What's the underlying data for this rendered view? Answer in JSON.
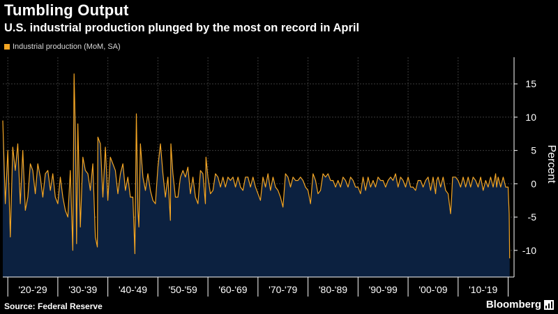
{
  "header": {
    "title": "Tumbling Output",
    "subtitle": "U.S. industrial production plunged by the most on record in April"
  },
  "legend": {
    "label": "Industrial production (MoM, SA)"
  },
  "footer": {
    "source": "Source: Federal Reserve",
    "brand": "Bloomberg"
  },
  "colors": {
    "background": "#000000",
    "area": "#0c2140",
    "line": "#f5a623",
    "grid": "#3c3c3c",
    "text": "#ffffff"
  },
  "chart_data": {
    "type": "area",
    "title": "Tumbling Output",
    "subtitle": "U.S. industrial production plunged by the most on record in April",
    "series": [
      {
        "name": "Industrial production (MoM, SA)",
        "x": [
          1919.0,
          1919.5,
          1920.0,
          1920.5,
          1921.0,
          1921.5,
          1922.0,
          1922.5,
          1923.0,
          1923.5,
          1924.0,
          1924.5,
          1925.0,
          1925.5,
          1926.0,
          1926.5,
          1927.0,
          1927.5,
          1928.0,
          1928.5,
          1929.0,
          1929.5,
          1930.0,
          1930.5,
          1931.0,
          1931.5,
          1932.0,
          1932.5,
          1933.0,
          1933.25,
          1933.5,
          1933.75,
          1934.0,
          1934.5,
          1935.0,
          1935.5,
          1936.0,
          1936.5,
          1937.0,
          1937.5,
          1937.9,
          1938.0,
          1938.5,
          1939.0,
          1939.5,
          1940.0,
          1940.5,
          1941.0,
          1941.5,
          1942.0,
          1942.5,
          1943.0,
          1943.5,
          1944.0,
          1944.5,
          1945.0,
          1945.4,
          1945.7,
          1946.0,
          1946.2,
          1946.5,
          1947.0,
          1947.5,
          1948.0,
          1948.5,
          1949.0,
          1949.5,
          1950.0,
          1950.5,
          1951.0,
          1951.5,
          1952.0,
          1952.5,
          1952.6,
          1953.0,
          1953.5,
          1954.0,
          1954.5,
          1955.0,
          1955.5,
          1956.0,
          1956.5,
          1957.0,
          1957.5,
          1958.0,
          1958.5,
          1959.0,
          1959.5,
          1959.6,
          1960.0,
          1960.5,
          1961.0,
          1961.5,
          1962.0,
          1962.5,
          1963.0,
          1963.5,
          1964.0,
          1964.5,
          1965.0,
          1965.5,
          1966.0,
          1966.5,
          1967.0,
          1967.5,
          1968.0,
          1968.5,
          1969.0,
          1969.5,
          1970.0,
          1970.5,
          1971.0,
          1971.5,
          1972.0,
          1972.5,
          1973.0,
          1973.5,
          1974.0,
          1974.5,
          1975.0,
          1975.5,
          1976.0,
          1976.5,
          1977.0,
          1977.5,
          1978.0,
          1978.5,
          1979.0,
          1979.5,
          1980.0,
          1980.5,
          1981.0,
          1981.5,
          1982.0,
          1982.5,
          1983.0,
          1983.5,
          1984.0,
          1984.5,
          1985.0,
          1985.5,
          1986.0,
          1986.5,
          1987.0,
          1987.5,
          1988.0,
          1988.5,
          1989.0,
          1989.5,
          1990.0,
          1990.5,
          1991.0,
          1991.5,
          1992.0,
          1992.5,
          1993.0,
          1993.5,
          1994.0,
          1994.5,
          1995.0,
          1995.5,
          1996.0,
          1996.5,
          1997.0,
          1997.5,
          1998.0,
          1998.5,
          1999.0,
          1999.5,
          2000.0,
          2000.5,
          2001.0,
          2001.5,
          2002.0,
          2002.5,
          2003.0,
          2003.5,
          2004.0,
          2004.5,
          2005.0,
          2005.5,
          2005.7,
          2006.0,
          2006.5,
          2007.0,
          2007.5,
          2008.0,
          2008.5,
          2008.7,
          2008.9,
          2009.0,
          2009.5,
          2010.0,
          2010.5,
          2011.0,
          2011.5,
          2012.0,
          2012.5,
          2013.0,
          2013.5,
          2014.0,
          2014.5,
          2015.0,
          2015.5,
          2016.0,
          2016.5,
          2017.0,
          2017.5,
          2017.7,
          2018.0,
          2018.5,
          2019.0,
          2019.5,
          2020.0,
          2020.2,
          2020.3
        ],
        "values": [
          9.5,
          -3.0,
          5.0,
          -8.0,
          5.5,
          2.0,
          6.0,
          -3.0,
          5.0,
          -4.0,
          -2.0,
          3.0,
          2.0,
          -1.5,
          3.0,
          1.0,
          -2.0,
          1.5,
          2.0,
          -1.0,
          1.5,
          -2.0,
          -3.0,
          1.0,
          -2.0,
          -4.0,
          -5.0,
          2.0,
          -10.0,
          16.5,
          8.0,
          -9.0,
          9.0,
          -6.5,
          4.0,
          2.0,
          1.5,
          -1.0,
          3.0,
          -8.0,
          -9.5,
          7.0,
          6.0,
          -2.0,
          5.5,
          -2.5,
          4.0,
          3.0,
          2.0,
          -1.5,
          1.5,
          3.0,
          -1.0,
          1.0,
          -2.0,
          -2.0,
          -10.5,
          10.5,
          -4.0,
          -6.5,
          6.0,
          1.0,
          -1.0,
          1.5,
          -1.0,
          -2.5,
          -3.0,
          2.5,
          6.0,
          1.5,
          -2.0,
          1.0,
          -5.5,
          6.0,
          1.5,
          -2.0,
          -2.0,
          1.0,
          2.0,
          1.0,
          2.5,
          -1.5,
          1.0,
          -2.0,
          -3.0,
          2.0,
          1.5,
          -3.0,
          4.0,
          1.0,
          -1.5,
          -1.0,
          1.5,
          1.0,
          -0.5,
          1.0,
          -0.5,
          1.0,
          0.5,
          1.0,
          -0.5,
          1.0,
          -0.5,
          -1.0,
          1.0,
          1.0,
          -0.5,
          1.0,
          -0.5,
          -1.5,
          -2.5,
          1.0,
          -0.5,
          1.5,
          -1.0,
          1.0,
          -0.5,
          -1.0,
          -2.0,
          -3.5,
          1.5,
          1.0,
          -0.5,
          1.0,
          0.5,
          0.5,
          1.0,
          0.5,
          -0.5,
          -1.0,
          -3.0,
          1.5,
          0.5,
          -1.5,
          -1.0,
          1.5,
          1.0,
          1.5,
          0.5,
          0.5,
          -0.5,
          0.5,
          -0.5,
          1.0,
          0.5,
          -0.5,
          1.0,
          0.5,
          -0.5,
          -0.5,
          -1.5,
          1.0,
          -1.0,
          1.0,
          -0.5,
          0.5,
          -0.5,
          1.0,
          0.5,
          0.5,
          -0.5,
          0.5,
          1.0,
          0.5,
          1.5,
          -0.5,
          1.0,
          0.5,
          -0.5,
          1.0,
          -0.5,
          -0.5,
          -1.0,
          0.5,
          0.5,
          -0.5,
          0.5,
          1.0,
          -1.0,
          1.0,
          -1.5,
          0.5,
          1.0,
          -0.5,
          1.0,
          -1.0,
          -1.5,
          -4.5,
          -2.0,
          1.0,
          1.0,
          1.0,
          0.5,
          -0.5,
          1.0,
          -0.5,
          1.0,
          -0.5,
          1.0,
          0.5,
          -0.5,
          1.0,
          -1.0,
          0.5,
          -0.5,
          1.0,
          -0.5,
          1.5,
          -0.5,
          1.0,
          -0.5,
          1.0,
          -0.5,
          -0.5,
          -4.5,
          -11.2
        ]
      }
    ],
    "xlim": [
      1919.0,
      2020.9
    ],
    "ylim": [
      -14.0,
      19.0
    ],
    "yticks": [
      15,
      10,
      5,
      0,
      -5,
      -10
    ],
    "ylabel": "Percent",
    "xlabel": "",
    "xticks": [
      {
        "label": "'20-'29",
        "start": 1920,
        "end": 1930
      },
      {
        "label": "'30-'39",
        "start": 1930,
        "end": 1940
      },
      {
        "label": "'40-'49",
        "start": 1940,
        "end": 1950
      },
      {
        "label": "'50-'59",
        "start": 1950,
        "end": 1960
      },
      {
        "label": "'60-'69",
        "start": 1960,
        "end": 1970
      },
      {
        "label": "'70-'79",
        "start": 1970,
        "end": 1980
      },
      {
        "label": "'80-'89",
        "start": 1980,
        "end": 1990
      },
      {
        "label": "'90-'99",
        "start": 1990,
        "end": 2000
      },
      {
        "label": "'00-'09",
        "start": 2000,
        "end": 2010
      },
      {
        "label": "'10-'19",
        "start": 2010,
        "end": 2020
      }
    ],
    "grid": true,
    "legend_position": "top-left",
    "y_axis_side": "right"
  }
}
